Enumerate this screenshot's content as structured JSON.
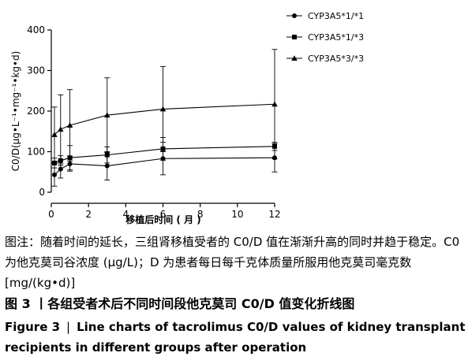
{
  "chart_data": {
    "type": "line",
    "x": [
      0.17,
      0.5,
      1,
      3,
      6,
      12
    ],
    "xticks": [
      "0",
      "2",
      "4",
      "6",
      "8",
      "10",
      "12"
    ],
    "yticks": [
      "0",
      "100",
      "200",
      "300",
      "400"
    ],
    "xlim": [
      0,
      12
    ],
    "ylim": [
      0,
      400
    ],
    "xlabel": "移植后时间 ( 月 )",
    "ylabel": "C0/D(μg•L⁻¹•mg⁻¹•kg•d)",
    "legend_position": "top-right",
    "series": [
      {
        "name": "CYP3A5*1/*1",
        "marker": "circle",
        "values": [
          43,
          57,
          70,
          65,
          83,
          85
        ],
        "err": [
          28,
          22,
          18,
          35,
          40,
          35
        ]
      },
      {
        "name": "CYP3A5*1/*3",
        "marker": "square",
        "values": [
          72,
          78,
          85,
          92,
          107,
          113
        ],
        "err": [
          12,
          12,
          30,
          20,
          28,
          10
        ]
      },
      {
        "name": "CYP3A5*3/*3",
        "marker": "triangle",
        "values": [
          142,
          155,
          165,
          190,
          205,
          217
        ],
        "err": [
          68,
          85,
          88,
          92,
          105,
          135
        ]
      }
    ]
  },
  "caption": {
    "note": "图注：随着时间的延长，三组肾移植受者的 C0/D 值在渐渐升高的同时并趋于稳定。C0 为他克莫司谷浓度 (μg/L)；D 为患者每日每千克体质量所服用他克莫司毫克数 [mg/(kg•d)]",
    "cn_title": "图 3  丨各组受者术后不同时间段他克莫司 C0/D 值变化折线图",
    "en_label": "Figure 3",
    "en_sep": "|",
    "en_title": "Line charts of tacrolimus C0/D values of kidney transplant recipients in different groups after operation"
  }
}
